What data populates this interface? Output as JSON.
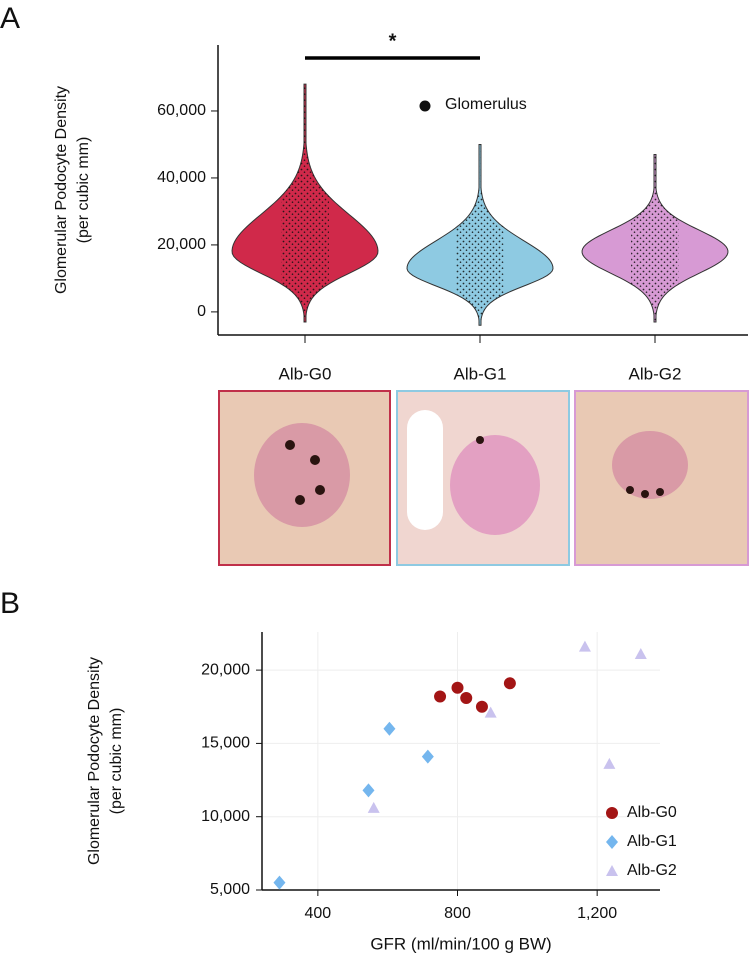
{
  "chart_data": [
    {
      "type": "violin",
      "panel": "A",
      "ylabel": [
        "Glomerular Podocyte Density",
        "(per cubic mm)"
      ],
      "categories": [
        "Alb-G0",
        "Alb-G1",
        "Alb-G2"
      ],
      "colors": [
        "#d0294a",
        "#8ecae2",
        "#d79ad4"
      ],
      "min": [
        -3000,
        -4000,
        -3000
      ],
      "peak": [
        18000,
        13000,
        18000
      ],
      "max": [
        68000,
        50000,
        47000
      ],
      "ylim": [
        -6900,
        79700
      ],
      "yticks": [
        0,
        {
          "value": 20000,
          "label": "20,000"
        },
        {
          "value": 40000,
          "label": "40,000"
        },
        {
          "value": 60000,
          "label": "60,000"
        }
      ],
      "legend": "Glomerulus",
      "annotation": {
        "text": "*",
        "between": [
          0,
          1
        ]
      }
    },
    {
      "type": "scatter",
      "panel": "B",
      "xlabel": "GFR (ml/min/100 g BW)",
      "ylabel": [
        "Glomerular Podocyte Density",
        "(per cubic mm)"
      ],
      "xlim": [
        240,
        1380
      ],
      "ylim": [
        5000,
        22600
      ],
      "xticks": [
        400,
        800,
        {
          "value": 1200,
          "label": "1,200"
        }
      ],
      "yticks": [
        {
          "value": 5000,
          "label": "5,000"
        },
        {
          "value": 10000,
          "label": "10,000"
        },
        {
          "value": 15000,
          "label": "15,000"
        },
        {
          "value": 20000,
          "label": "20,000"
        }
      ],
      "grid": true,
      "legend_position": "lower right",
      "series": [
        {
          "name": "Alb-G0",
          "color": "#a31515",
          "marker": "circle",
          "x": [
            750,
            800,
            825,
            870,
            950
          ],
          "values": [
            18200,
            18800,
            18100,
            17500,
            19100
          ]
        },
        {
          "name": "Alb-G1",
          "color": "#74b6ee",
          "marker": "diamond",
          "x": [
            290,
            545,
            605,
            715
          ],
          "values": [
            5500,
            11800,
            16000,
            14100
          ]
        },
        {
          "name": "Alb-G2",
          "color": "#c9c2ee",
          "marker": "triangle",
          "x": [
            560,
            895,
            1165,
            1235,
            1325
          ],
          "values": [
            10600,
            17100,
            21600,
            13600,
            21100
          ]
        }
      ]
    }
  ]
}
